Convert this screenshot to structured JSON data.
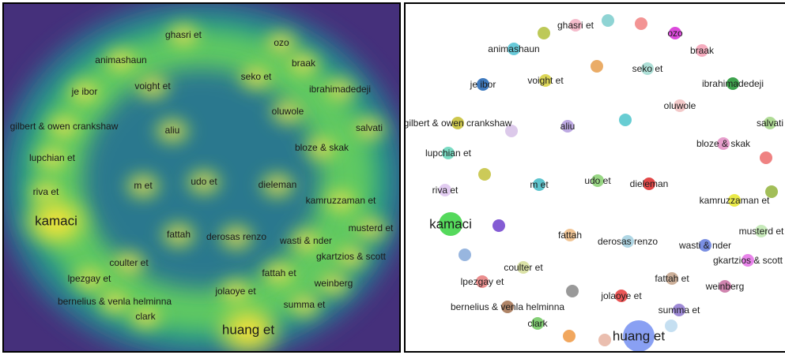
{
  "density_view": {
    "labels": [
      {
        "text": "ghasri et",
        "weight": 1
      },
      {
        "text": "ozo",
        "weight": 1
      },
      {
        "text": "animashaun",
        "weight": 1
      },
      {
        "text": "braak",
        "weight": 1
      },
      {
        "text": "seko et",
        "weight": 1
      },
      {
        "text": "je ibor",
        "weight": 1
      },
      {
        "text": "voight et",
        "weight": 1
      },
      {
        "text": "ibrahimadedeji",
        "weight": 1
      },
      {
        "text": "oluwole",
        "weight": 1
      },
      {
        "text": "gilbert & owen crankshaw",
        "weight": 1
      },
      {
        "text": "aliu",
        "weight": 1
      },
      {
        "text": "salvati",
        "weight": 1
      },
      {
        "text": "bloze & skak",
        "weight": 1
      },
      {
        "text": "lupchian et",
        "weight": 1
      },
      {
        "text": "m et",
        "weight": 1
      },
      {
        "text": "udo et",
        "weight": 1
      },
      {
        "text": "dieleman",
        "weight": 1
      },
      {
        "text": "riva et",
        "weight": 1
      },
      {
        "text": "kamruzzaman et",
        "weight": 1
      },
      {
        "text": "kamaci",
        "weight": 2
      },
      {
        "text": "musterd et",
        "weight": 1
      },
      {
        "text": "fattah",
        "weight": 1
      },
      {
        "text": "derosas renzo",
        "weight": 1
      },
      {
        "text": "wasti & nder",
        "weight": 1
      },
      {
        "text": "gkartzios & scott",
        "weight": 1
      },
      {
        "text": "coulter et",
        "weight": 1
      },
      {
        "text": "fattah et",
        "weight": 1
      },
      {
        "text": "lpezgay et",
        "weight": 1
      },
      {
        "text": "weinberg",
        "weight": 1
      },
      {
        "text": "jolaoye et",
        "weight": 1
      },
      {
        "text": "bernelius & venla helminna",
        "weight": 1
      },
      {
        "text": "summa et",
        "weight": 1
      },
      {
        "text": "clark",
        "weight": 1
      },
      {
        "text": "huang et",
        "weight": 2
      }
    ]
  },
  "network_view": {
    "nodes": [
      {
        "label": "ghasri et",
        "color": "#f4b6c8"
      },
      {
        "label": "",
        "color": "#86d0d0"
      },
      {
        "label": "",
        "color": "#f28b8b"
      },
      {
        "label": "ozo",
        "color": "#d83ad8"
      },
      {
        "label": "",
        "color": "#b7c44a"
      },
      {
        "label": "animashaun",
        "color": "#5bc6d6"
      },
      {
        "label": "braak",
        "color": "#f4a5b8"
      },
      {
        "label": "",
        "color": "#e8a55a"
      },
      {
        "label": "seko et",
        "color": "#a6dcd2"
      },
      {
        "label": "je ibor",
        "color": "#2f6fb8"
      },
      {
        "label": "voight et",
        "color": "#d9d24a"
      },
      {
        "label": "ibrahimadedeji",
        "color": "#2e9a3e"
      },
      {
        "label": "oluwole",
        "color": "#f2c4c4"
      },
      {
        "label": "gilbert & owen crankshaw",
        "color": "#c9c23e"
      },
      {
        "label": "",
        "color": "#d9c4e8"
      },
      {
        "label": "aliu",
        "color": "#b7a2e0"
      },
      {
        "label": "",
        "color": "#5bc9cf"
      },
      {
        "label": "salvati",
        "color": "#a8d88c"
      },
      {
        "label": "bloze & skak",
        "color": "#e596c8"
      },
      {
        "label": "",
        "color": "#ee7777"
      },
      {
        "label": "lupchian et",
        "color": "#6fd8be"
      },
      {
        "label": "",
        "color": "#c8c64a"
      },
      {
        "label": "m et",
        "color": "#4fbfc9"
      },
      {
        "label": "udo et",
        "color": "#8fd27a"
      },
      {
        "label": "dieleman",
        "color": "#e03838"
      },
      {
        "label": "riva et",
        "color": "#e0c8f0"
      },
      {
        "label": "",
        "color": "#9ab84a"
      },
      {
        "label": "kamruzzaman et",
        "color": "#e8e83a"
      },
      {
        "label": "kamaci",
        "color": "#46d64e"
      },
      {
        "label": "",
        "color": "#7a4ed0"
      },
      {
        "label": "musterd et",
        "color": "#c2e8b4"
      },
      {
        "label": "fattah",
        "color": "#f0c08c"
      },
      {
        "label": "derosas renzo",
        "color": "#a8d2e2"
      },
      {
        "label": "wasti & nder",
        "color": "#6f86e0"
      },
      {
        "label": "",
        "color": "#8fb0dc"
      },
      {
        "label": "gkartzios & scott",
        "color": "#e67ae8"
      },
      {
        "label": "coulter et",
        "color": "#d8e0a0"
      },
      {
        "label": "lpezgay et",
        "color": "#e88484"
      },
      {
        "label": "fattah et",
        "color": "#c8a890"
      },
      {
        "label": "weinberg",
        "color": "#cc7aa8"
      },
      {
        "label": "",
        "color": "#909090"
      },
      {
        "label": "jolaoye et",
        "color": "#e84848"
      },
      {
        "label": "bernelius & venla helminna",
        "color": "#a87a5a"
      },
      {
        "label": "summa et",
        "color": "#9680d2"
      },
      {
        "label": "clark",
        "color": "#7acc6a"
      },
      {
        "label": "",
        "color": "#c0dcf0"
      },
      {
        "label": "",
        "color": "#f0a050"
      },
      {
        "label": "",
        "color": "#e8b8a8"
      },
      {
        "label": "huang et",
        "color": "#7f98f2"
      }
    ]
  }
}
